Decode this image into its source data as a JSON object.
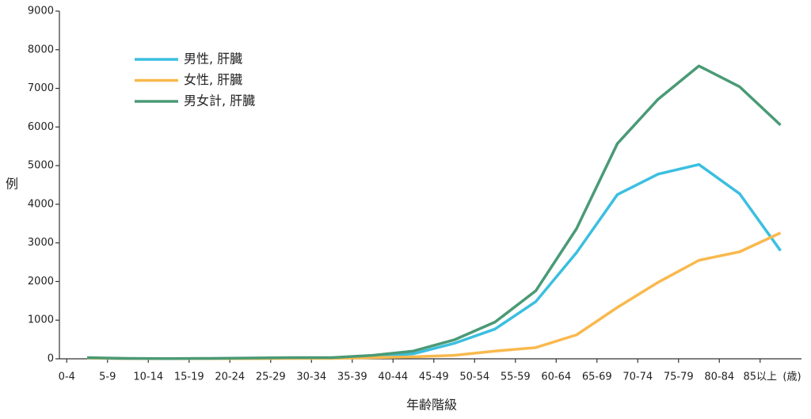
{
  "chart_data": {
    "type": "line",
    "xlabel": "年齢階級",
    "ylabel": "例",
    "xunit": "(歳)",
    "categories": [
      "0-4",
      "5-9",
      "10-14",
      "15-19",
      "20-24",
      "25-29",
      "30-34",
      "35-39",
      "40-44",
      "45-49",
      "50-54",
      "55-59",
      "60-64",
      "65-69",
      "70-74",
      "75-79",
      "80-84",
      "85以上"
    ],
    "series": [
      {
        "name": "男性, 肝臓",
        "color": "#3bbfe0",
        "values": [
          20,
          5,
          5,
          5,
          10,
          20,
          20,
          50,
          130,
          400,
          770,
          1480,
          2750,
          4250,
          4780,
          5030,
          4270,
          2800
        ]
      },
      {
        "name": "女性, 肝臓",
        "color": "#f9b94d",
        "values": [
          20,
          5,
          5,
          5,
          5,
          10,
          10,
          30,
          50,
          90,
          200,
          290,
          620,
          1330,
          1980,
          2550,
          2770,
          3260
        ]
      },
      {
        "name": "男女計, 肝臓",
        "color": "#4a9a76",
        "values": [
          30,
          10,
          5,
          10,
          20,
          30,
          30,
          90,
          200,
          490,
          950,
          1760,
          3370,
          5570,
          6720,
          7580,
          7040,
          6050
        ]
      }
    ],
    "ylim": [
      0,
      9000
    ],
    "yticks": [
      0,
      1000,
      2000,
      3000,
      4000,
      5000,
      6000,
      7000,
      8000,
      9000
    ],
    "legend": "upper left",
    "grid": false
  }
}
